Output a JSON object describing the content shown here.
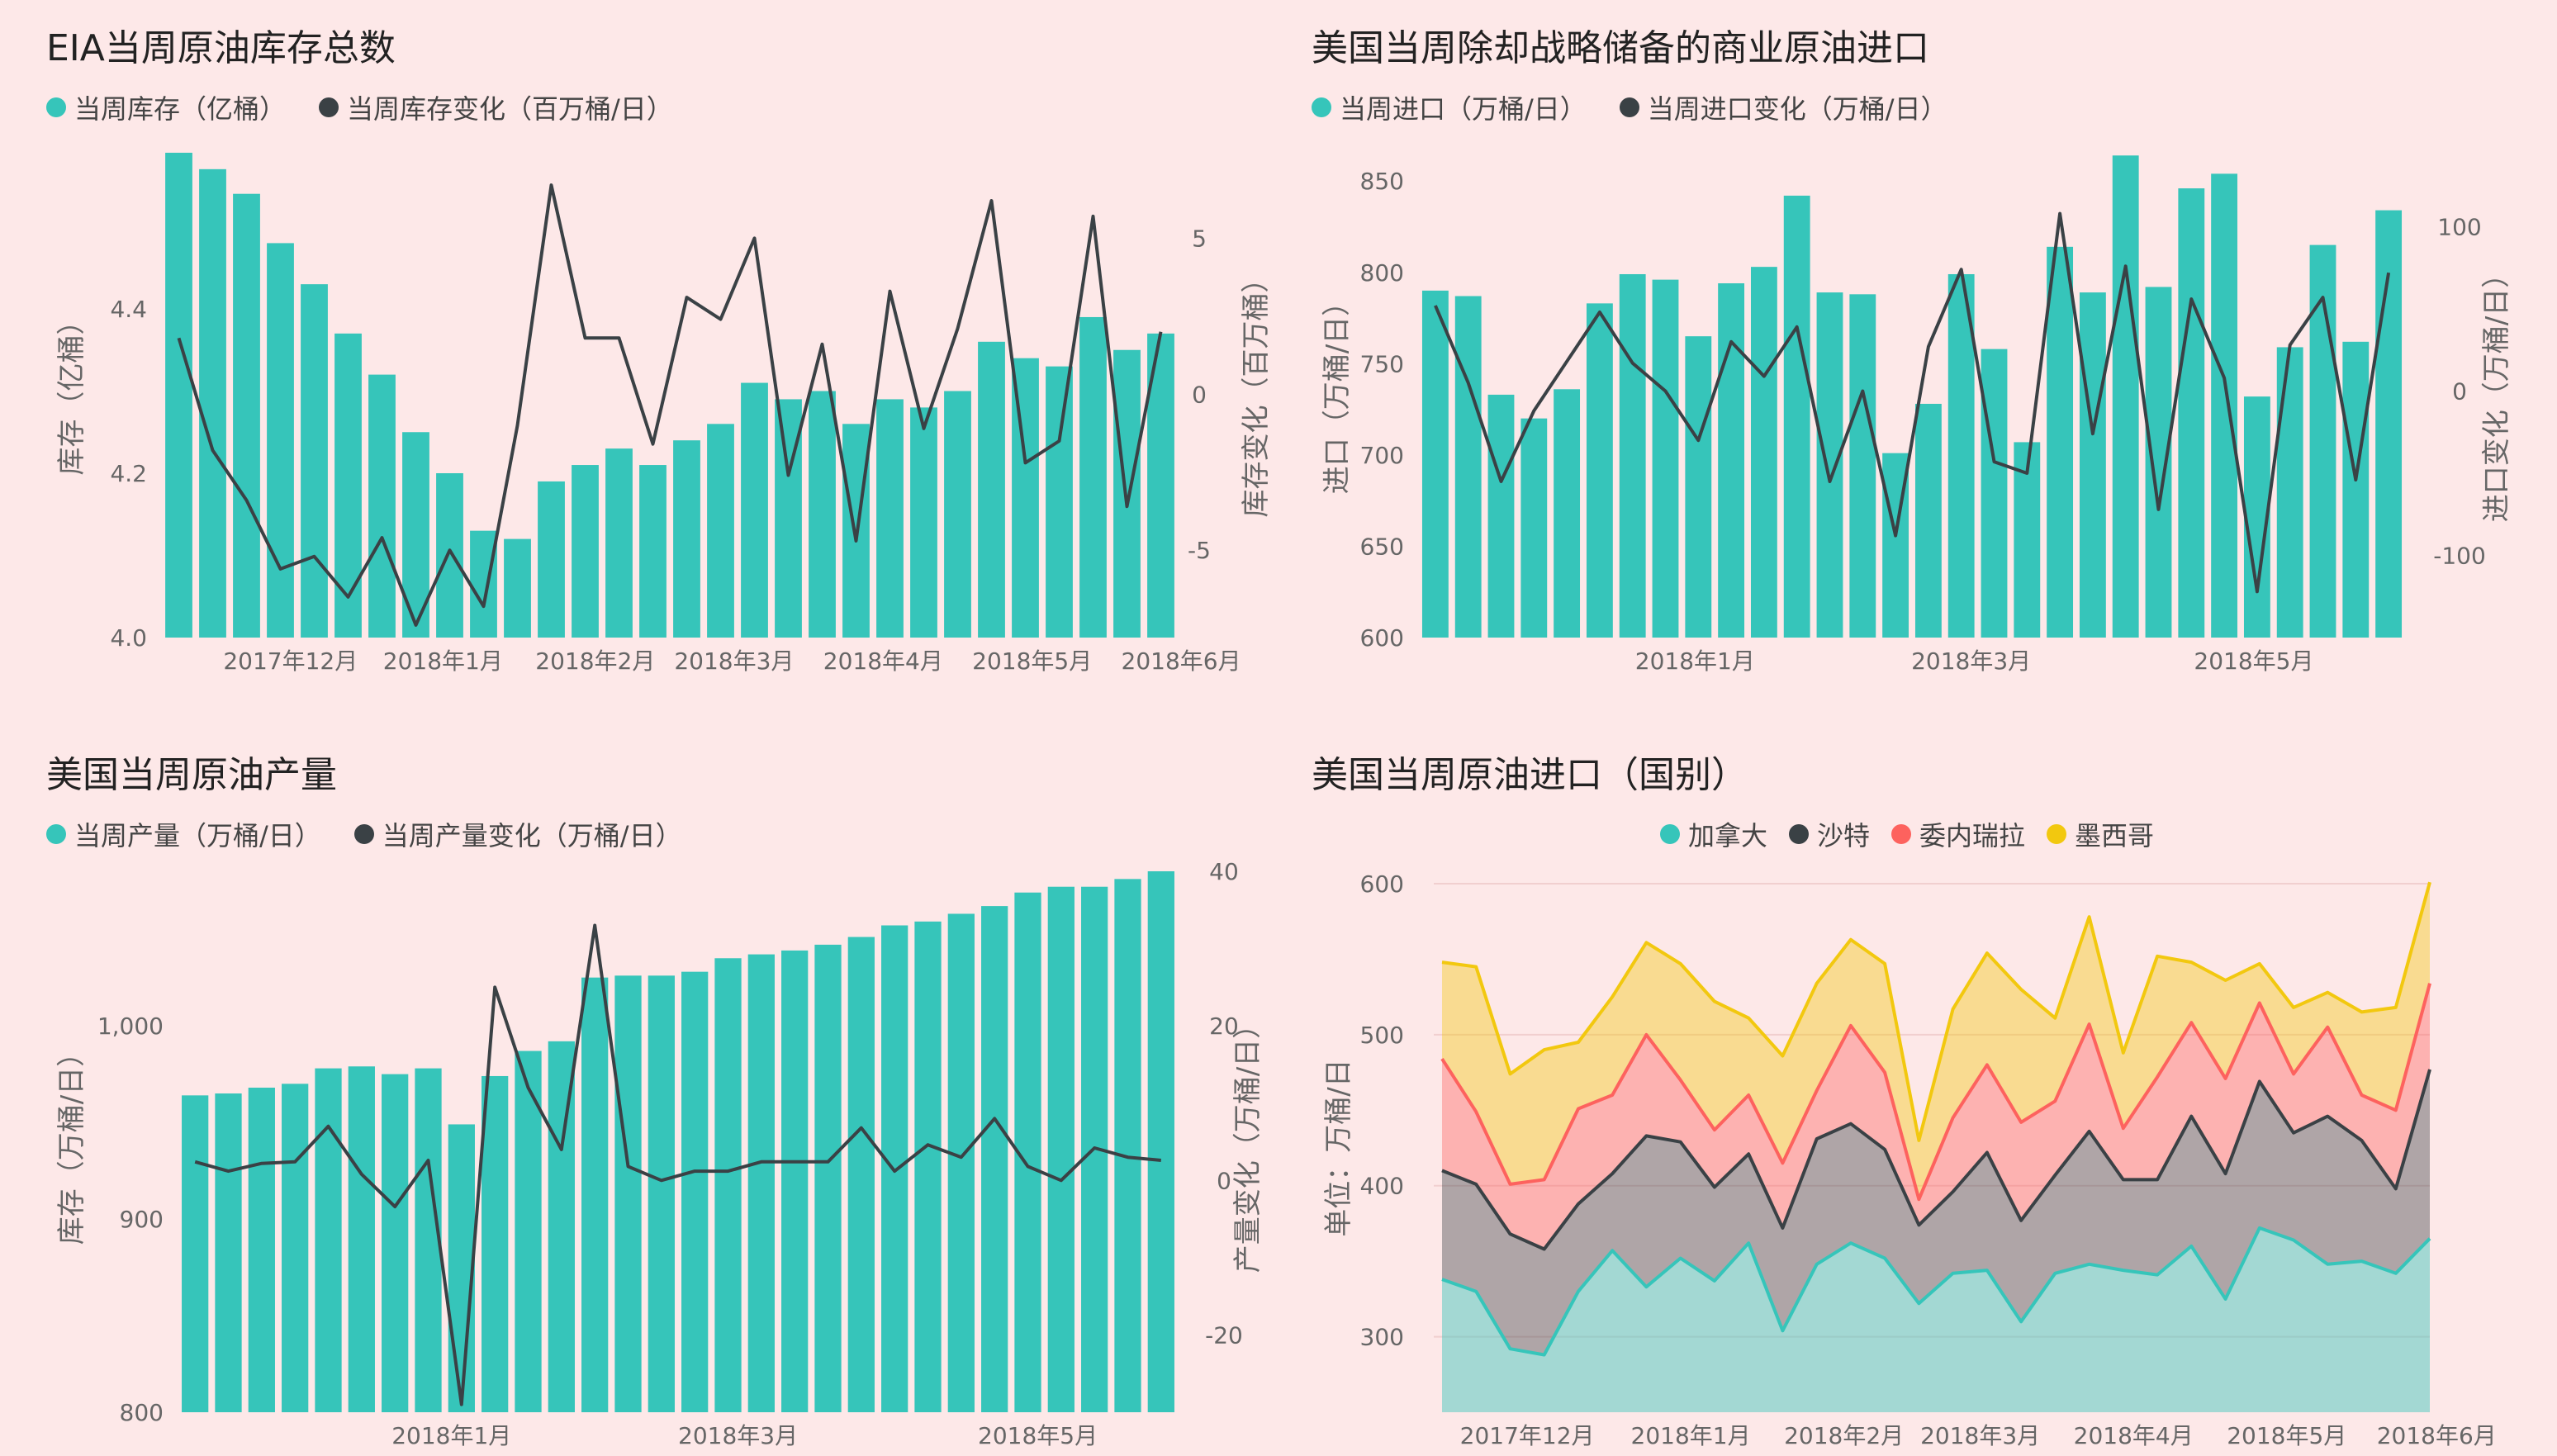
{
  "colors": {
    "teal": "#36c5ba",
    "dark": "#3a4145",
    "red": "#fd625e",
    "yellow": "#f2c80f",
    "background": "#fde8e8"
  },
  "chart_data": [
    {
      "type": "bar+line",
      "title": "EIA当周原油库存总数",
      "legend": [
        "当周库存（亿桶）",
        "当周库存变化（百万桶/日）"
      ],
      "ylabel": "库存（亿桶）",
      "y2label": "库存变化（百万桶）",
      "ylim": [
        4.0,
        4.6
      ],
      "yticks": [
        4.0,
        4.2,
        4.4
      ],
      "yticklabels": [
        "4.0",
        "4.2",
        "4.4"
      ],
      "y2lim": [
        -7.8,
        8.0
      ],
      "y2ticks": [
        -5,
        0,
        5
      ],
      "y2ticklabels": [
        "-5",
        "0",
        "5"
      ],
      "xticks": [
        {
          "index": 3.3,
          "label": "2017年12月"
        },
        {
          "index": 7.8,
          "label": "2018年1月"
        },
        {
          "index": 12.3,
          "label": "2018年2月"
        },
        {
          "index": 16.4,
          "label": "2018年3月"
        },
        {
          "index": 20.8,
          "label": "2018年4月"
        },
        {
          "index": 25.2,
          "label": "2018年5月"
        },
        {
          "index": 29.6,
          "label": "2018年6月"
        }
      ],
      "bars": [
        4.59,
        4.57,
        4.54,
        4.48,
        4.43,
        4.37,
        4.32,
        4.25,
        4.2,
        4.13,
        4.12,
        4.19,
        4.21,
        4.23,
        4.21,
        4.24,
        4.26,
        4.31,
        4.29,
        4.3,
        4.26,
        4.29,
        4.28,
        4.3,
        4.36,
        4.34,
        4.33,
        4.39,
        4.35,
        4.37
      ],
      "line": [
        1.8,
        -1.8,
        -3.4,
        -5.6,
        -5.2,
        -6.5,
        -4.6,
        -7.4,
        -5.0,
        -6.8,
        -1.0,
        6.7,
        1.8,
        1.8,
        -1.6,
        3.1,
        2.4,
        5.0,
        -2.6,
        1.6,
        -4.7,
        3.3,
        -1.1,
        2.1,
        6.2,
        -2.2,
        -1.5,
        5.7,
        -3.6,
        2.0
      ]
    },
    {
      "type": "bar+line",
      "title": "美国当周除却战略储备的商业原油进口",
      "legend": [
        "当周进口（万桶/日）",
        "当周进口变化（万桶/日）"
      ],
      "ylabel": "进口（万桶/日）",
      "y2label": "进口变化（万桶/日）",
      "ylim": [
        600,
        870
      ],
      "yticks": [
        600,
        650,
        700,
        750,
        800,
        850
      ],
      "yticklabels": [
        "600",
        "650",
        "700",
        "750",
        "800",
        "850"
      ],
      "y2lim": [
        -150,
        150
      ],
      "y2ticks": [
        -100,
        0,
        100
      ],
      "y2ticklabels": [
        "-100",
        "0",
        "100"
      ],
      "xticks": [
        {
          "index": 7.9,
          "label": "2018年1月"
        },
        {
          "index": 16.3,
          "label": "2018年3月"
        },
        {
          "index": 24.9,
          "label": "2018年5月"
        }
      ],
      "bars": [
        790,
        787,
        733,
        720,
        736,
        783,
        799,
        796,
        765,
        794,
        803,
        842,
        789,
        788,
        701,
        728,
        799,
        758,
        707,
        814,
        789,
        864,
        792,
        846,
        854,
        732,
        759,
        815,
        762,
        834
      ],
      "line": [
        52,
        5,
        -55,
        -12,
        18,
        48,
        17,
        0,
        -30,
        30,
        9,
        39,
        -55,
        0,
        -88,
        27,
        74,
        -43,
        -50,
        108,
        -26,
        76,
        -72,
        56,
        8,
        -122,
        28,
        57,
        -54,
        72
      ]
    },
    {
      "type": "bar+line",
      "title": "美国当周原油产量",
      "legend": [
        "当周产量（万桶/日）",
        "当周产量变化（万桶/日）"
      ],
      "ylabel": "库存（万桶/日）",
      "y2label": "产量变化（万桶/日）",
      "ylim": [
        800,
        1080
      ],
      "yticks": [
        800,
        900,
        1000
      ],
      "yticklabels": [
        "800",
        "900",
        "1,000"
      ],
      "y2lim": [
        -30,
        40
      ],
      "y2ticks": [
        -20,
        0,
        20,
        40
      ],
      "y2ticklabels": [
        "-20",
        "0",
        "20",
        "40"
      ],
      "xticks": [
        {
          "index": 7.7,
          "label": "2018年1月"
        },
        {
          "index": 16.3,
          "label": "2018年3月"
        },
        {
          "index": 25.3,
          "label": "2018年5月"
        }
      ],
      "bars": [
        964,
        965,
        968,
        970,
        978,
        979,
        975,
        978,
        949,
        974,
        987,
        992,
        1025,
        1026,
        1026,
        1028,
        1035,
        1037,
        1039,
        1042,
        1046,
        1052,
        1054,
        1058,
        1062,
        1069,
        1072,
        1072,
        1076,
        1080
      ],
      "line": [
        2.4,
        1.2,
        2.2,
        2.4,
        7.0,
        0.8,
        -3.4,
        2.6,
        -29.0,
        25.0,
        12.0,
        4.0,
        33.0,
        1.8,
        0,
        1.2,
        1.2,
        2.4,
        2.4,
        2.4,
        6.8,
        1.2,
        4.6,
        3.0,
        8.0,
        1.8,
        0,
        4.2,
        3.0,
        2.6
      ]
    },
    {
      "type": "area",
      "stacked": true,
      "title": "美国当周原油进口（国别）",
      "legend": [
        "加拿大",
        "沙特",
        "委内瑞拉",
        "墨西哥"
      ],
      "ylabel": "单位：万桶/日",
      "ylim": [
        250,
        600
      ],
      "yticks": [
        300,
        400,
        500,
        600
      ],
      "yticklabels": [
        "300",
        "400",
        "500",
        "600"
      ],
      "xticks": [
        {
          "index": 3.5,
          "label": "2017年12月"
        },
        {
          "index": 8.3,
          "label": "2018年1月"
        },
        {
          "index": 12.8,
          "label": "2018年2月"
        },
        {
          "index": 16.8,
          "label": "2018年3月"
        },
        {
          "index": 21.3,
          "label": "2018年4月"
        },
        {
          "index": 25.8,
          "label": "2018年5月"
        },
        {
          "index": 30.2,
          "label": "2018年6月"
        }
      ],
      "series": [
        {
          "name": "加拿大",
          "cumulative": [
            338,
            330,
            292,
            288,
            330,
            357,
            333,
            352,
            337,
            362,
            304,
            348,
            362,
            352,
            322,
            342,
            344,
            310,
            342,
            348,
            344,
            341,
            360,
            325,
            372,
            364,
            348,
            350,
            342,
            365
          ]
        },
        {
          "name": "沙特",
          "cumulative": [
            410,
            401,
            368,
            358,
            388,
            408,
            433,
            429,
            399,
            421,
            372,
            431,
            441,
            424,
            374,
            396,
            422,
            377,
            407,
            436,
            404,
            404,
            446,
            408,
            469,
            435,
            446,
            430,
            398,
            477
          ]
        },
        {
          "name": "委内瑞拉",
          "cumulative": [
            484,
            449,
            401,
            404,
            451,
            460,
            500,
            470,
            437,
            460,
            415,
            463,
            506,
            475,
            391,
            445,
            480,
            442,
            456,
            507,
            438,
            472,
            508,
            471,
            521,
            474,
            505,
            460,
            450,
            534
          ]
        },
        {
          "name": "墨西哥",
          "cumulative": [
            548,
            545,
            474,
            490,
            495,
            525,
            561,
            547,
            522,
            511,
            486,
            534,
            563,
            547,
            430,
            517,
            554,
            530,
            511,
            578,
            488,
            552,
            548,
            536,
            547,
            518,
            528,
            515,
            518,
            601
          ]
        }
      ]
    }
  ]
}
